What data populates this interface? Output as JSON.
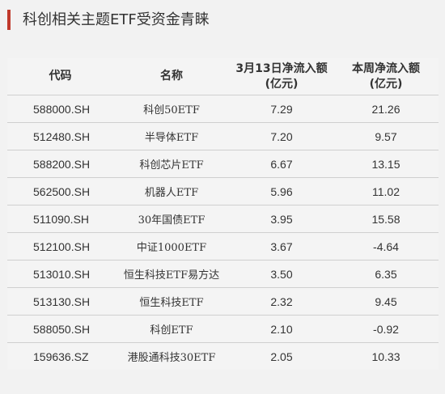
{
  "colors": {
    "accent": "#c0392b",
    "text": "#333333",
    "rule": "#cfcfcf",
    "background": "#f2f2f2"
  },
  "page_title": "科创相关主题ETF受资金青睐",
  "table": {
    "headers": {
      "code": "代码",
      "name": "名称",
      "flow_day_line1": "3月13日净流入额",
      "flow_day_line2": "(亿元)",
      "flow_week_line1": "本周净流入额",
      "flow_week_line2": "(亿元)"
    },
    "rows": [
      {
        "code": "588000.SH",
        "name": "科创50ETF",
        "day": "7.29",
        "week": "21.26"
      },
      {
        "code": "512480.SH",
        "name": "半导体ETF",
        "day": "7.20",
        "week": "9.57"
      },
      {
        "code": "588200.SH",
        "name": "科创芯片ETF",
        "day": "6.67",
        "week": "13.15"
      },
      {
        "code": "562500.SH",
        "name": "机器人ETF",
        "day": "5.96",
        "week": "11.02"
      },
      {
        "code": "511090.SH",
        "name": "30年国债ETF",
        "day": "3.95",
        "week": "15.58"
      },
      {
        "code": "512100.SH",
        "name": "中证1000ETF",
        "day": "3.67",
        "week": "-4.64"
      },
      {
        "code": "513010.SH",
        "name": "恒生科技ETF易方达",
        "day": "3.50",
        "week": "6.35"
      },
      {
        "code": "513130.SH",
        "name": "恒生科技ETF",
        "day": "2.32",
        "week": "9.45"
      },
      {
        "code": "588050.SH",
        "name": "科创ETF",
        "day": "2.10",
        "week": "-0.92"
      },
      {
        "code": "159636.SZ",
        "name": "港股通科技30ETF",
        "day": "2.05",
        "week": "10.33"
      }
    ]
  }
}
